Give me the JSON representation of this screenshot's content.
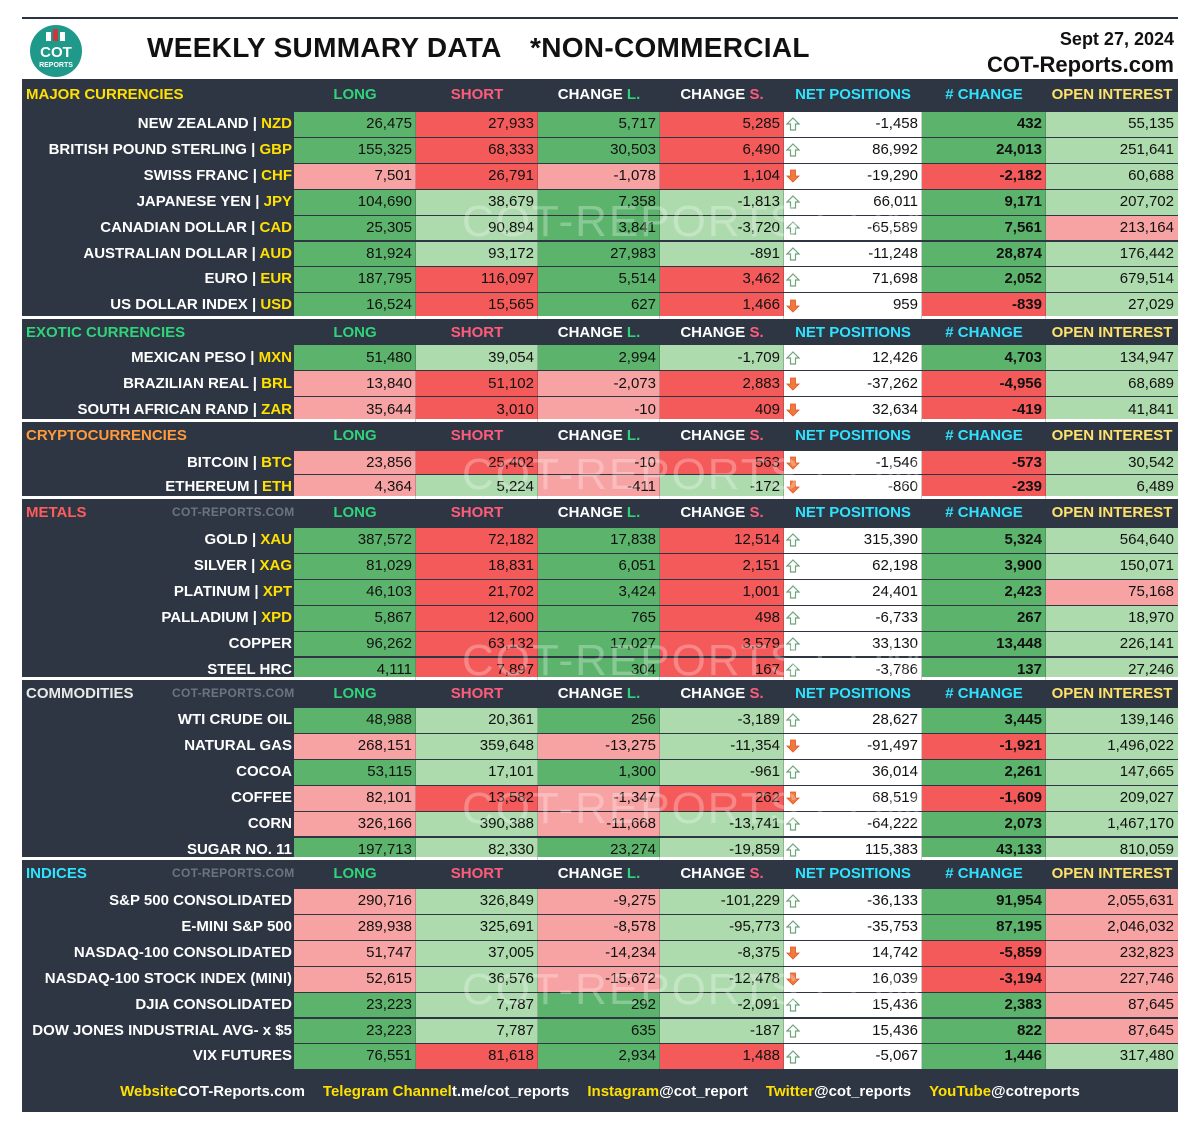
{
  "header": {
    "title": "WEEKLY SUMMARY DATA",
    "subtitle": "*NON-COMMERCIAL",
    "date": "Sept 27, 2024",
    "site": "COT-Reports.com",
    "logo_text_1": "COT",
    "logo_text_2": "REPORTS"
  },
  "columns": {
    "long": "LONG",
    "short": "SHORT",
    "change_prefix": "CHANGE",
    "change_long_suffix": "L.",
    "change_short_suffix": "S.",
    "net": "NET POSITIONS",
    "net_change": "# CHANGE",
    "open_interest": "OPEN INTEREST"
  },
  "watermark_text": "COT-REPORTS.COM",
  "section_watermark": "COT-REPORTS.COM",
  "colors": {
    "dark_green": "#5cb46c",
    "light_green": "#aedbae",
    "dark_red": "#f55a5a",
    "light_red": "#f8a3a3",
    "background": "#2e3643",
    "code_yellow": "#ffe000"
  },
  "sections": [
    {
      "name": "MAJOR CURRENCIES",
      "name_color": "#ffe000",
      "show_watermark": false,
      "rows": [
        {
          "name": "NEW ZEALAND",
          "code": "NZD",
          "long": "26,475",
          "short": "27,933",
          "chl": "5,717",
          "chs": "5,285",
          "net": "-1,458",
          "dir": "up",
          "nch": "432",
          "oi": "55,135",
          "bg": [
            "G",
            "R",
            "G",
            "R",
            "G",
            "g"
          ]
        },
        {
          "name": "BRITISH POUND STERLING",
          "code": "GBP",
          "long": "155,325",
          "short": "68,333",
          "chl": "30,503",
          "chs": "6,490",
          "net": "86,992",
          "dir": "up",
          "nch": "24,013",
          "oi": "251,641",
          "bg": [
            "G",
            "R",
            "G",
            "R",
            "G",
            "g"
          ]
        },
        {
          "name": "SWISS FRANC",
          "code": "CHF",
          "long": "7,501",
          "short": "26,791",
          "chl": "-1,078",
          "chs": "1,104",
          "net": "-19,290",
          "dir": "down",
          "nch": "-2,182",
          "oi": "60,688",
          "bg": [
            "r",
            "R",
            "r",
            "R",
            "R",
            "g"
          ]
        },
        {
          "name": "JAPANESE YEN",
          "code": "JPY",
          "long": "104,690",
          "short": "38,679",
          "chl": "7,358",
          "chs": "-1,813",
          "net": "66,011",
          "dir": "up",
          "nch": "9,171",
          "oi": "207,702",
          "bg": [
            "G",
            "g",
            "G",
            "g",
            "G",
            "g"
          ]
        },
        {
          "name": "CANADIAN DOLLAR",
          "code": "CAD",
          "long": "25,305",
          "short": "90,894",
          "chl": "3,841",
          "chs": "-3,720",
          "net": "-65,589",
          "dir": "up",
          "nch": "7,561",
          "oi": "213,164",
          "bg": [
            "G",
            "g",
            "G",
            "g",
            "G",
            "r"
          ]
        },
        {
          "name": "AUSTRALIAN DOLLAR",
          "code": "AUD",
          "long": "81,924",
          "short": "93,172",
          "chl": "27,983",
          "chs": "-891",
          "net": "-11,248",
          "dir": "up",
          "nch": "28,874",
          "oi": "176,442",
          "bg": [
            "G",
            "g",
            "G",
            "g",
            "G",
            "g"
          ]
        },
        {
          "name": "EURO",
          "code": "EUR",
          "long": "187,795",
          "short": "116,097",
          "chl": "5,514",
          "chs": "3,462",
          "net": "71,698",
          "dir": "up",
          "nch": "2,052",
          "oi": "679,514",
          "bg": [
            "G",
            "R",
            "G",
            "R",
            "G",
            "g"
          ]
        },
        {
          "name": "US DOLLAR INDEX",
          "code": "USD",
          "long": "16,524",
          "short": "15,565",
          "chl": "627",
          "chs": "1,466",
          "net": "959",
          "dir": "down",
          "nch": "-839",
          "oi": "27,029",
          "bg": [
            "G",
            "R",
            "G",
            "R",
            "R",
            "g"
          ]
        }
      ]
    },
    {
      "name": "EXOTIC CURRENCIES",
      "name_color": "#2fd47a",
      "show_watermark": false,
      "rows": [
        {
          "name": "MEXICAN PESO",
          "code": "MXN",
          "long": "51,480",
          "short": "39,054",
          "chl": "2,994",
          "chs": "-1,709",
          "net": "12,426",
          "dir": "up",
          "nch": "4,703",
          "oi": "134,947",
          "bg": [
            "G",
            "g",
            "G",
            "g",
            "G",
            "g"
          ]
        },
        {
          "name": "BRAZILIAN REAL",
          "code": "BRL",
          "long": "13,840",
          "short": "51,102",
          "chl": "-2,073",
          "chs": "2,883",
          "net": "-37,262",
          "dir": "down",
          "nch": "-4,956",
          "oi": "68,689",
          "bg": [
            "r",
            "R",
            "r",
            "R",
            "R",
            "g"
          ]
        },
        {
          "name": "SOUTH AFRICAN RAND",
          "code": "ZAR",
          "long": "35,644",
          "short": "3,010",
          "chl": "-10",
          "chs": "409",
          "net": "32,634",
          "dir": "down",
          "nch": "-419",
          "oi": "41,841",
          "bg": [
            "r",
            "R",
            "r",
            "R",
            "R",
            "g"
          ]
        }
      ]
    },
    {
      "name": "CRYPTOCURRENCIES",
      "name_color": "#ff9a3c",
      "show_watermark": false,
      "rows": [
        {
          "name": "BITCOIN",
          "code": "BTC",
          "long": "23,856",
          "short": "25,402",
          "chl": "-10",
          "chs": "563",
          "net": "-1,546",
          "dir": "down",
          "nch": "-573",
          "oi": "30,542",
          "bg": [
            "r",
            "R",
            "r",
            "R",
            "R",
            "g"
          ]
        },
        {
          "name": "ETHEREUM",
          "code": "ETH",
          "long": "4,364",
          "short": "5,224",
          "chl": "-411",
          "chs": "-172",
          "net": "-860",
          "dir": "down",
          "nch": "-239",
          "oi": "6,489",
          "bg": [
            "r",
            "g",
            "r",
            "g",
            "R",
            "g"
          ]
        }
      ]
    },
    {
      "name": "METALS",
      "name_color": "#ff5c5c",
      "show_watermark": true,
      "rows": [
        {
          "name": "GOLD",
          "code": "XAU",
          "long": "387,572",
          "short": "72,182",
          "chl": "17,838",
          "chs": "12,514",
          "net": "315,390",
          "dir": "up",
          "nch": "5,324",
          "oi": "564,640",
          "bg": [
            "G",
            "R",
            "G",
            "R",
            "G",
            "g"
          ]
        },
        {
          "name": "SILVER",
          "code": "XAG",
          "long": "81,029",
          "short": "18,831",
          "chl": "6,051",
          "chs": "2,151",
          "net": "62,198",
          "dir": "up",
          "nch": "3,900",
          "oi": "150,071",
          "bg": [
            "G",
            "R",
            "G",
            "R",
            "G",
            "g"
          ]
        },
        {
          "name": "PLATINUM",
          "code": "XPT",
          "long": "46,103",
          "short": "21,702",
          "chl": "3,424",
          "chs": "1,001",
          "net": "24,401",
          "dir": "up",
          "nch": "2,423",
          "oi": "75,168",
          "bg": [
            "G",
            "R",
            "G",
            "R",
            "G",
            "r"
          ]
        },
        {
          "name": "PALLADIUM",
          "code": "XPD",
          "long": "5,867",
          "short": "12,600",
          "chl": "765",
          "chs": "498",
          "net": "-6,733",
          "dir": "up",
          "nch": "267",
          "oi": "18,970",
          "bg": [
            "G",
            "R",
            "G",
            "R",
            "G",
            "g"
          ]
        },
        {
          "name": "COPPER",
          "code": "",
          "long": "96,262",
          "short": "63,132",
          "chl": "17,027",
          "chs": "3,579",
          "net": "33,130",
          "dir": "up",
          "nch": "13,448",
          "oi": "226,141",
          "bg": [
            "G",
            "R",
            "G",
            "R",
            "G",
            "g"
          ]
        },
        {
          "name": "STEEL HRC",
          "code": "",
          "long": "4,111",
          "short": "7,897",
          "chl": "304",
          "chs": "167",
          "net": "-3,786",
          "dir": "up",
          "nch": "137",
          "oi": "27,246",
          "bg": [
            "G",
            "R",
            "G",
            "R",
            "G",
            "g"
          ]
        }
      ]
    },
    {
      "name": "COMMODITIES",
      "name_color": "#e8e8e8",
      "show_watermark": true,
      "rows": [
        {
          "name": "WTI CRUDE OIL",
          "code": "",
          "long": "48,988",
          "short": "20,361",
          "chl": "256",
          "chs": "-3,189",
          "net": "28,627",
          "dir": "up",
          "nch": "3,445",
          "oi": "139,146",
          "bg": [
            "G",
            "g",
            "G",
            "g",
            "G",
            "g"
          ]
        },
        {
          "name": "NATURAL GAS",
          "code": "",
          "long": "268,151",
          "short": "359,648",
          "chl": "-13,275",
          "chs": "-11,354",
          "net": "-91,497",
          "dir": "down",
          "nch": "-1,921",
          "oi": "1,496,022",
          "bg": [
            "r",
            "g",
            "r",
            "g",
            "R",
            "g"
          ]
        },
        {
          "name": "COCOA",
          "code": "",
          "long": "53,115",
          "short": "17,101",
          "chl": "1,300",
          "chs": "-961",
          "net": "36,014",
          "dir": "up",
          "nch": "2,261",
          "oi": "147,665",
          "bg": [
            "G",
            "g",
            "G",
            "g",
            "G",
            "g"
          ]
        },
        {
          "name": "COFFEE",
          "code": "",
          "long": "82,101",
          "short": "13,582",
          "chl": "-1,347",
          "chs": "262",
          "net": "68,519",
          "dir": "down",
          "nch": "-1,609",
          "oi": "209,027",
          "bg": [
            "r",
            "R",
            "r",
            "R",
            "R",
            "g"
          ]
        },
        {
          "name": "CORN",
          "code": "",
          "long": "326,166",
          "short": "390,388",
          "chl": "-11,668",
          "chs": "-13,741",
          "net": "-64,222",
          "dir": "up",
          "nch": "2,073",
          "oi": "1,467,170",
          "bg": [
            "r",
            "g",
            "r",
            "g",
            "G",
            "g"
          ]
        },
        {
          "name": "SUGAR NO. 11",
          "code": "",
          "long": "197,713",
          "short": "82,330",
          "chl": "23,274",
          "chs": "-19,859",
          "net": "115,383",
          "dir": "up",
          "nch": "43,133",
          "oi": "810,059",
          "bg": [
            "G",
            "g",
            "G",
            "g",
            "G",
            "g"
          ]
        }
      ]
    },
    {
      "name": "INDICES",
      "name_color": "#2fe3ff",
      "show_watermark": true,
      "rows": [
        {
          "name": "S&P 500 CONSOLIDATED",
          "code": "",
          "long": "290,716",
          "short": "326,849",
          "chl": "-9,275",
          "chs": "-101,229",
          "net": "-36,133",
          "dir": "up",
          "nch": "91,954",
          "oi": "2,055,631",
          "bg": [
            "r",
            "g",
            "r",
            "g",
            "G",
            "r"
          ]
        },
        {
          "name": "E-MINI S&P 500",
          "code": "",
          "long": "289,938",
          "short": "325,691",
          "chl": "-8,578",
          "chs": "-95,773",
          "net": "-35,753",
          "dir": "up",
          "nch": "87,195",
          "oi": "2,046,032",
          "bg": [
            "r",
            "g",
            "r",
            "g",
            "G",
            "r"
          ]
        },
        {
          "name": "NASDAQ-100 CONSOLIDATED",
          "code": "",
          "long": "51,747",
          "short": "37,005",
          "chl": "-14,234",
          "chs": "-8,375",
          "net": "14,742",
          "dir": "down",
          "nch": "-5,859",
          "oi": "232,823",
          "bg": [
            "r",
            "g",
            "r",
            "g",
            "R",
            "r"
          ]
        },
        {
          "name": "NASDAQ-100 STOCK INDEX (MINI)",
          "code": "",
          "long": "52,615",
          "short": "36,576",
          "chl": "-15,672",
          "chs": "-12,478",
          "net": "16,039",
          "dir": "down",
          "nch": "-3,194",
          "oi": "227,746",
          "bg": [
            "r",
            "g",
            "r",
            "g",
            "R",
            "r"
          ]
        },
        {
          "name": "DJIA CONSOLIDATED",
          "code": "",
          "long": "23,223",
          "short": "7,787",
          "chl": "292",
          "chs": "-2,091",
          "net": "15,436",
          "dir": "up",
          "nch": "2,383",
          "oi": "87,645",
          "bg": [
            "G",
            "g",
            "G",
            "g",
            "G",
            "r"
          ]
        },
        {
          "name": "DOW JONES INDUSTRIAL AVG- x $5",
          "code": "",
          "long": "23,223",
          "short": "7,787",
          "chl": "635",
          "chs": "-187",
          "net": "15,436",
          "dir": "up",
          "nch": "822",
          "oi": "87,645",
          "bg": [
            "G",
            "g",
            "G",
            "g",
            "G",
            "r"
          ]
        },
        {
          "name": "VIX FUTURES",
          "code": "",
          "long": "76,551",
          "short": "81,618",
          "chl": "2,934",
          "chs": "1,488",
          "net": "-5,067",
          "dir": "up",
          "nch": "1,446",
          "oi": "317,480",
          "bg": [
            "G",
            "R",
            "G",
            "R",
            "G",
            "g"
          ]
        }
      ]
    }
  ],
  "footer": [
    {
      "label": "Website",
      "value": "COT-Reports.com"
    },
    {
      "label": "Telegram Channel",
      "value": "t.me/cot_reports"
    },
    {
      "label": "Instagram",
      "value": "@cot_report"
    },
    {
      "label": "Twitter",
      "value": "@cot_reports"
    },
    {
      "label": "YouTube",
      "value": "@cotreports"
    }
  ]
}
